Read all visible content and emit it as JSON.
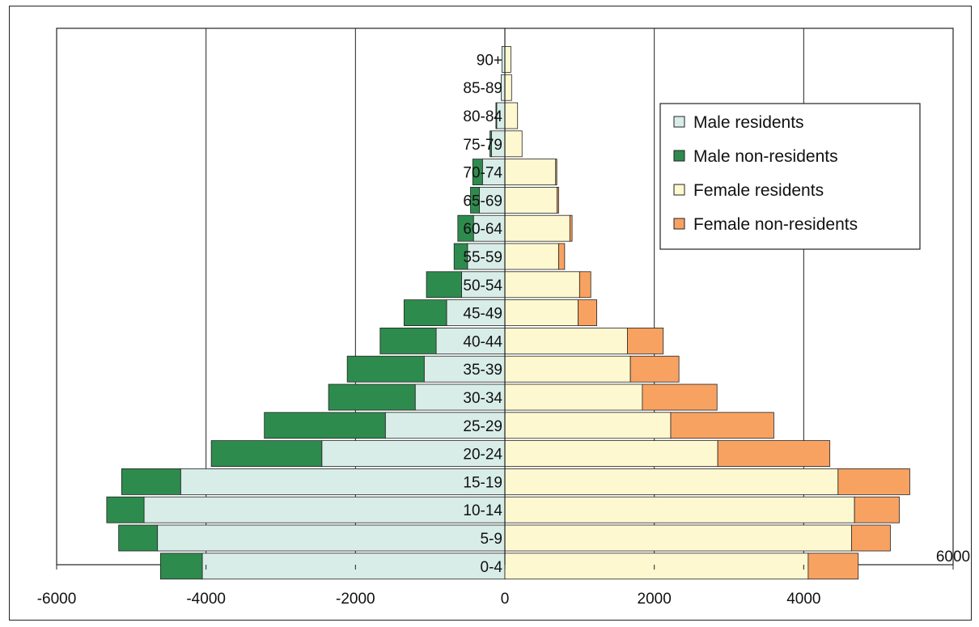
{
  "chart_data": {
    "type": "bar",
    "orientation": "horizontal",
    "stacked": true,
    "categories": [
      "0-4",
      "5-9",
      "10-14",
      "15-19",
      "20-24",
      "25-29",
      "30-34",
      "35-39",
      "40-44",
      "45-49",
      "50-54",
      "55-59",
      "60-64",
      "65-69",
      "70-74",
      "75-79",
      "80-84",
      "85-89",
      "90+"
    ],
    "series": [
      {
        "name": "Male residents",
        "color": "#d8ede8",
        "values": [
          -4050,
          -4650,
          -4830,
          -4340,
          -2450,
          -1600,
          -1200,
          -1080,
          -920,
          -780,
          -580,
          -500,
          -420,
          -340,
          -300,
          -180,
          -110,
          -50,
          -40
        ]
      },
      {
        "name": "Male non-residents",
        "color": "#2e8b4e",
        "values": [
          -560,
          -520,
          -500,
          -790,
          -1480,
          -1620,
          -1160,
          -1030,
          -750,
          -570,
          -470,
          -180,
          -210,
          -120,
          -130,
          -20,
          -10,
          -5,
          -5
        ]
      },
      {
        "name": "Female residents",
        "color": "#fdf8cf",
        "values": [
          4060,
          4640,
          4680,
          4460,
          2850,
          2220,
          1840,
          1680,
          1640,
          980,
          1000,
          720,
          870,
          700,
          680,
          230,
          170,
          90,
          80
        ]
      },
      {
        "name": "Female non-residents",
        "color": "#f8a262",
        "values": [
          670,
          520,
          600,
          960,
          1500,
          1380,
          1000,
          650,
          480,
          250,
          150,
          80,
          30,
          20,
          15,
          0,
          0,
          0,
          0
        ]
      }
    ],
    "xlim": [
      -6000,
      6000
    ],
    "xticks": [
      "-6000",
      "-4000",
      "-2000",
      "0",
      "2000",
      "4000",
      "6000"
    ],
    "xtick_values": [
      -6000,
      -4000,
      -2000,
      0,
      2000,
      4000,
      6000
    ],
    "grid": "vertical",
    "legend_position": "top-right"
  }
}
